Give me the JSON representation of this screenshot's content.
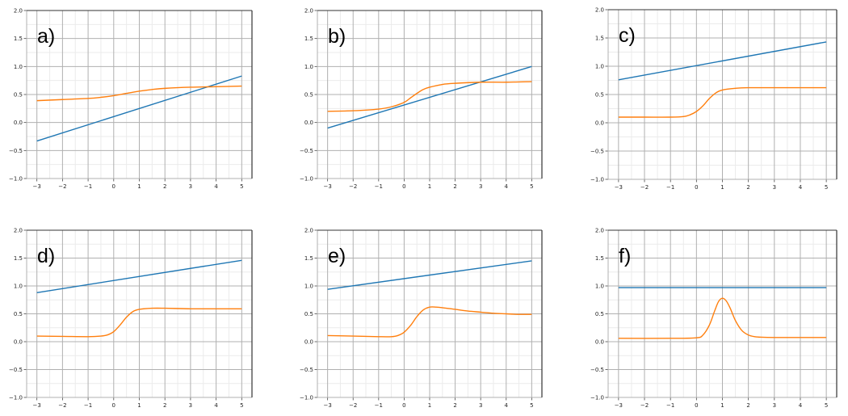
{
  "figure": {
    "colors": {
      "series_blue": "#1f77b4",
      "series_orange": "#ff7f0e",
      "grid_major": "#b0b0b0",
      "grid_minor": "#ebebeb",
      "spine_dark": "#333333",
      "spine_light": "#b0b0b0"
    }
  },
  "chart_data": [
    {
      "type": "line",
      "panel_label": "a)",
      "xlim": [
        -3,
        5
      ],
      "ylim": [
        -1.0,
        2.0
      ],
      "xticks": [
        "−3",
        "−2",
        "−1",
        "0",
        "1",
        "2",
        "3",
        "4",
        "5"
      ],
      "yticks": [
        "−1.0",
        "−0.5",
        "0.0",
        "0.5",
        "1.0",
        "1.5",
        "2.0"
      ],
      "grid": true,
      "series": [
        {
          "name": "blue",
          "x": [
            -3,
            5
          ],
          "y": [
            -0.33,
            0.83
          ]
        },
        {
          "name": "orange",
          "x": [
            -3,
            -2,
            -1,
            -0.5,
            0,
            0.5,
            1,
            1.5,
            2,
            3,
            4,
            5
          ],
          "y": [
            0.39,
            0.41,
            0.43,
            0.45,
            0.48,
            0.52,
            0.56,
            0.59,
            0.61,
            0.63,
            0.64,
            0.65
          ]
        }
      ]
    },
    {
      "type": "line",
      "panel_label": "b)",
      "xlim": [
        -3,
        5
      ],
      "ylim": [
        -1.0,
        2.0
      ],
      "xticks": [
        "−3",
        "−2",
        "−1",
        "0",
        "1",
        "2",
        "3",
        "4",
        "5"
      ],
      "yticks": [
        "−1.0",
        "−0.5",
        "0.0",
        "0.5",
        "1.0",
        "1.5",
        "2.0"
      ],
      "grid": true,
      "series": [
        {
          "name": "blue",
          "x": [
            -3,
            5
          ],
          "y": [
            -0.1,
            1.0
          ]
        },
        {
          "name": "orange",
          "x": [
            -3,
            -2,
            -1,
            -0.5,
            0,
            0.25,
            0.5,
            0.75,
            1,
            1.5,
            2,
            3,
            4,
            5
          ],
          "y": [
            0.2,
            0.21,
            0.24,
            0.28,
            0.36,
            0.44,
            0.52,
            0.59,
            0.63,
            0.68,
            0.7,
            0.72,
            0.72,
            0.73
          ]
        }
      ]
    },
    {
      "type": "line",
      "panel_label": "c)",
      "xlim": [
        -3,
        5
      ],
      "ylim": [
        -1.0,
        2.0
      ],
      "xticks": [
        "−3",
        "−2",
        "−1",
        "0",
        "1",
        "2",
        "3",
        "4",
        "5"
      ],
      "yticks": [
        "−1.0",
        "−0.5",
        "0.0",
        "0.5",
        "1.0",
        "1.5",
        "2.0"
      ],
      "grid": true,
      "series": [
        {
          "name": "blue",
          "x": [
            -3,
            5
          ],
          "y": [
            0.76,
            1.43
          ]
        },
        {
          "name": "orange",
          "x": [
            -3,
            -2,
            -1,
            -0.5,
            -0.25,
            0,
            0.25,
            0.5,
            0.75,
            1,
            1.5,
            2,
            3,
            4,
            5
          ],
          "y": [
            0.1,
            0.1,
            0.1,
            0.11,
            0.14,
            0.2,
            0.3,
            0.43,
            0.53,
            0.58,
            0.61,
            0.62,
            0.62,
            0.62,
            0.62
          ]
        }
      ]
    },
    {
      "type": "line",
      "panel_label": "d)",
      "xlim": [
        -3,
        5
      ],
      "ylim": [
        -1.0,
        2.0
      ],
      "xticks": [
        "−3",
        "−2",
        "−1",
        "0",
        "1",
        "2",
        "3",
        "4",
        "5"
      ],
      "yticks": [
        "−1.0",
        "−0.5",
        "0.0",
        "0.5",
        "1.0",
        "1.5",
        "2.0"
      ],
      "grid": true,
      "series": [
        {
          "name": "blue",
          "x": [
            -3,
            5
          ],
          "y": [
            0.88,
            1.46
          ]
        },
        {
          "name": "orange",
          "x": [
            -3,
            -2,
            -1,
            -0.5,
            -0.25,
            0,
            0.25,
            0.5,
            0.75,
            1,
            1.5,
            2,
            3,
            4,
            5
          ],
          "y": [
            0.1,
            0.095,
            0.09,
            0.1,
            0.12,
            0.18,
            0.3,
            0.44,
            0.54,
            0.58,
            0.6,
            0.6,
            0.59,
            0.59,
            0.59
          ]
        }
      ]
    },
    {
      "type": "line",
      "panel_label": "e)",
      "xlim": [
        -3,
        5
      ],
      "ylim": [
        -1.0,
        2.0
      ],
      "xticks": [
        "−3",
        "−2",
        "−1",
        "0",
        "1",
        "2",
        "3",
        "4",
        "5"
      ],
      "yticks": [
        "−1.0",
        "−0.5",
        "0.0",
        "0.5",
        "1.0",
        "1.5",
        "2.0"
      ],
      "grid": true,
      "series": [
        {
          "name": "blue",
          "x": [
            -3,
            5
          ],
          "y": [
            0.94,
            1.45
          ]
        },
        {
          "name": "orange",
          "x": [
            -3,
            -2,
            -1,
            -0.5,
            -0.25,
            0,
            0.25,
            0.5,
            0.75,
            1,
            1.25,
            1.5,
            2,
            2.5,
            3,
            3.5,
            4,
            4.5,
            5
          ],
          "y": [
            0.11,
            0.1,
            0.09,
            0.09,
            0.11,
            0.17,
            0.29,
            0.45,
            0.57,
            0.62,
            0.62,
            0.61,
            0.58,
            0.55,
            0.53,
            0.51,
            0.5,
            0.49,
            0.49
          ]
        }
      ]
    },
    {
      "type": "line",
      "panel_label": "f)",
      "xlim": [
        -3,
        5
      ],
      "ylim": [
        -1.0,
        2.0
      ],
      "xticks": [
        "−3",
        "−2",
        "−1",
        "0",
        "1",
        "2",
        "3",
        "4",
        "5"
      ],
      "yticks": [
        "−1.0",
        "−0.5",
        "0.0",
        "0.5",
        "1.0",
        "1.5",
        "2.0"
      ],
      "grid": true,
      "series": [
        {
          "name": "blue",
          "x": [
            -3,
            5
          ],
          "y": [
            0.97,
            0.97
          ]
        },
        {
          "name": "orange",
          "x": [
            -3,
            -1,
            0,
            0.25,
            0.5,
            0.7,
            0.85,
            1,
            1.15,
            1.3,
            1.5,
            1.75,
            2,
            2.25,
            2.5,
            3,
            4,
            5
          ],
          "y": [
            0.06,
            0.06,
            0.07,
            0.12,
            0.3,
            0.55,
            0.72,
            0.78,
            0.73,
            0.6,
            0.38,
            0.2,
            0.12,
            0.09,
            0.08,
            0.075,
            0.075,
            0.075
          ]
        }
      ]
    }
  ]
}
